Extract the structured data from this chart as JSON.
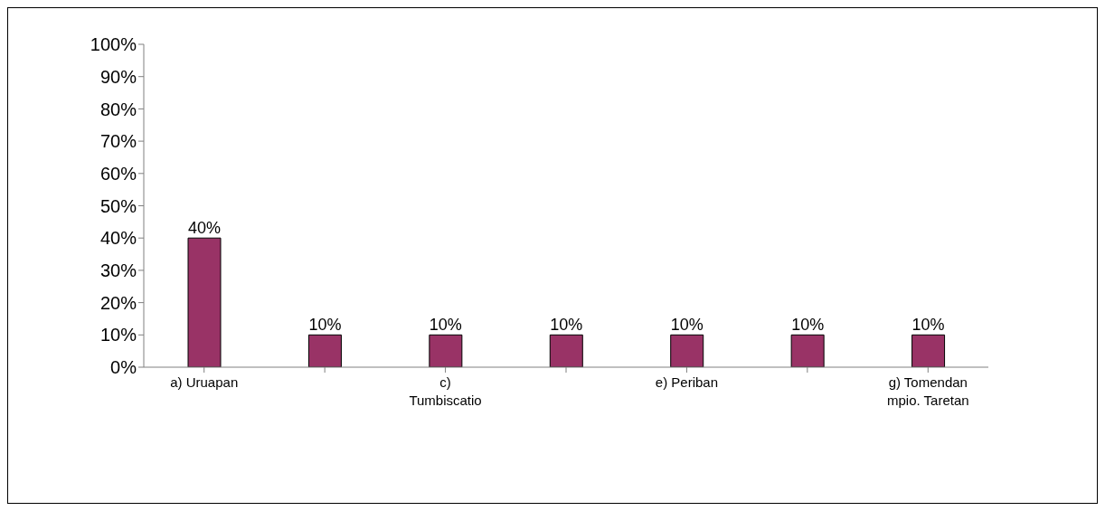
{
  "chart_data": {
    "type": "bar",
    "categories": [
      "a) Uruapan",
      null,
      "c) Tumbiscatio",
      null,
      "e) Periban",
      null,
      "g) Tomendan mpio. Taretan"
    ],
    "values": [
      40,
      10,
      10,
      10,
      10,
      10,
      10
    ],
    "color": "#993366",
    "value_labels": [
      "40%",
      "10%",
      "10%",
      "10%",
      "10%",
      "10%",
      "10%"
    ],
    "ylim": [
      0,
      100
    ],
    "yticks": [
      {
        "value": 0,
        "label": "0%"
      },
      {
        "value": 10,
        "label": "10%"
      },
      {
        "value": 20,
        "label": "20%"
      },
      {
        "value": 30,
        "label": "30%"
      },
      {
        "value": 40,
        "label": "40%"
      },
      {
        "value": 50,
        "label": "50%"
      },
      {
        "value": 60,
        "label": "60%"
      },
      {
        "value": 70,
        "label": "70%"
      },
      {
        "value": 80,
        "label": "80%"
      },
      {
        "value": 90,
        "label": "90%"
      },
      {
        "value": 100,
        "label": "100%"
      }
    ]
  }
}
